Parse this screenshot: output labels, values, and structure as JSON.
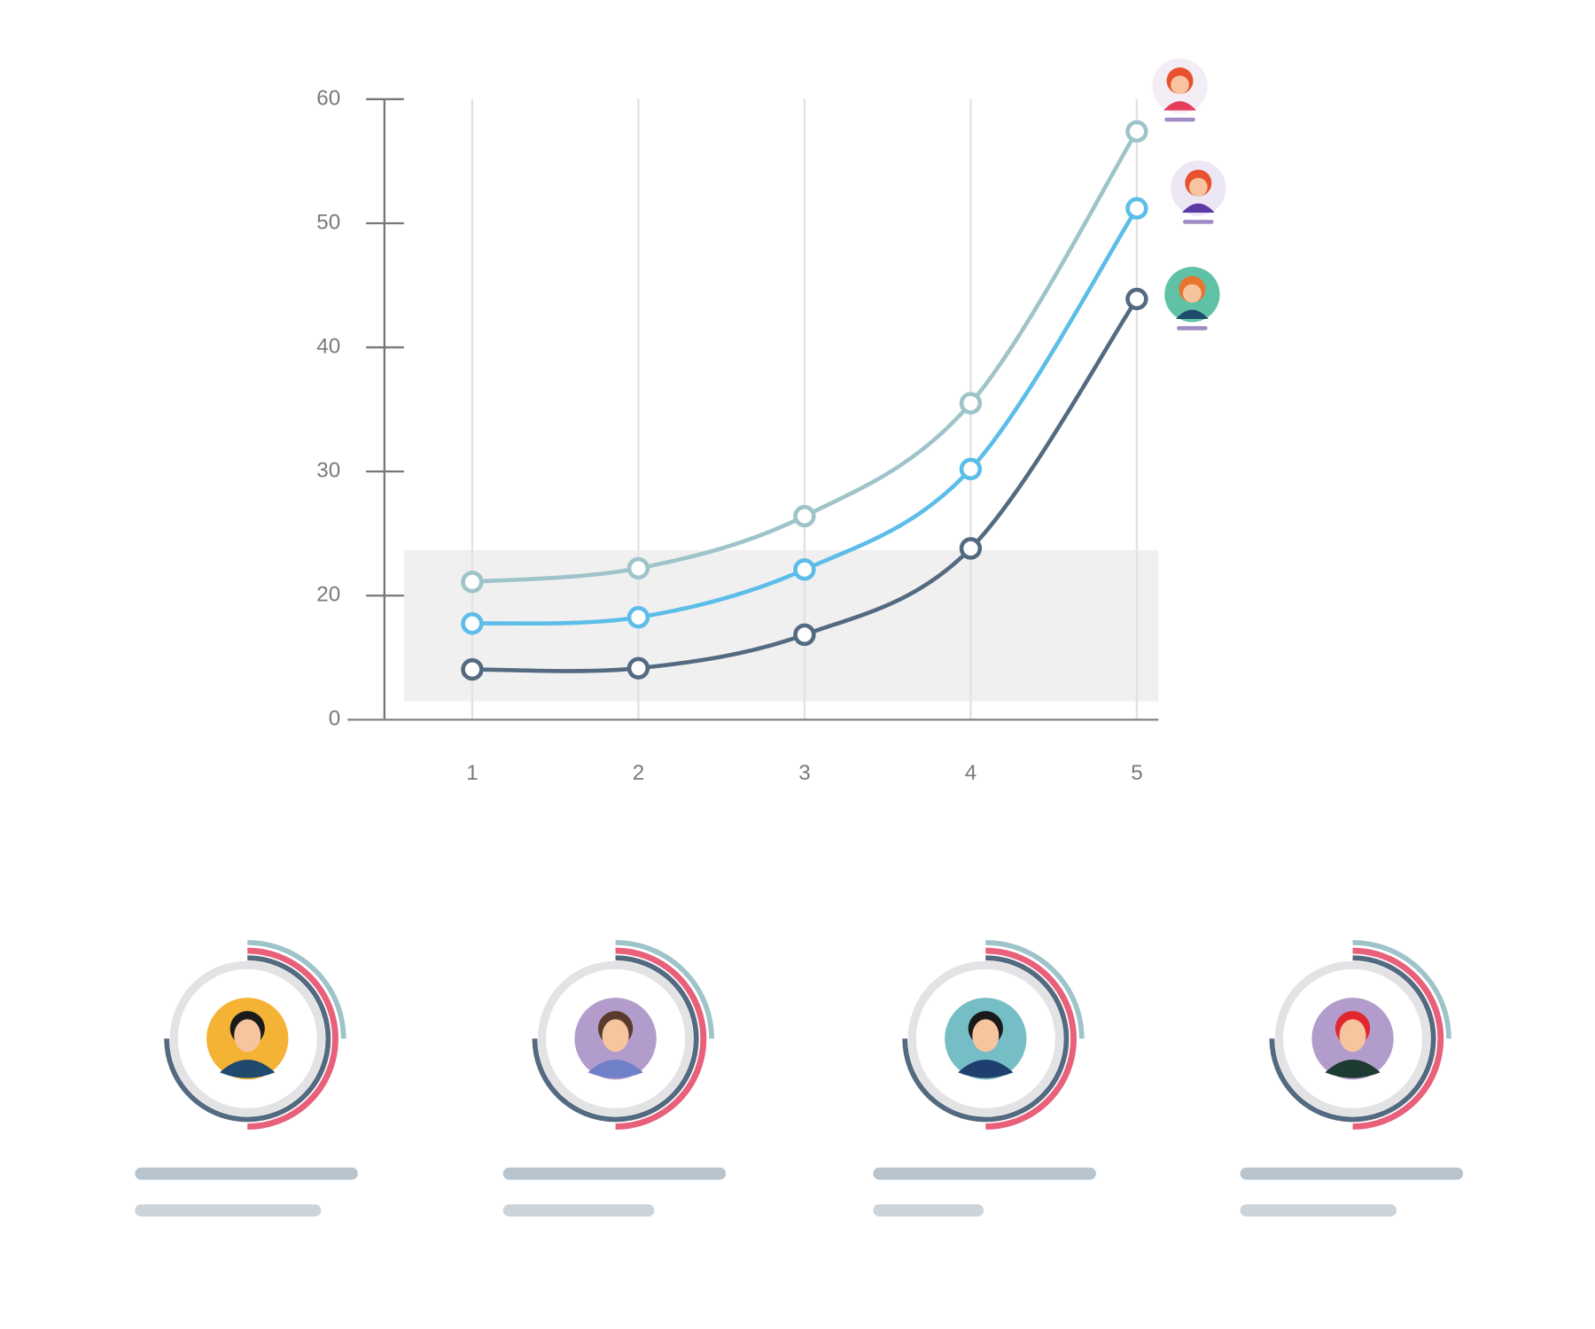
{
  "chart_data": {
    "type": "line",
    "x": [
      1,
      2,
      3,
      4,
      5
    ],
    "xlim": [
      0.25,
      5.13
    ],
    "xticks": [
      1,
      2,
      3,
      4,
      5
    ],
    "ylim": [
      0,
      60
    ],
    "yticks": [
      0,
      20,
      30,
      40,
      50,
      60
    ],
    "grid": true,
    "series": [
      {
        "color": "#9ec4c9",
        "values": [
          21.1,
          22.2,
          26.4,
          35.5,
          57.4
        ]
      },
      {
        "color": "#5bbde8",
        "values": [
          15.5,
          16.5,
          22.1,
          30.2,
          51.2
        ]
      },
      {
        "color": "#546a80",
        "values": [
          8.1,
          8.3,
          13.7,
          23.8,
          43.9
        ]
      }
    ]
  }
}
